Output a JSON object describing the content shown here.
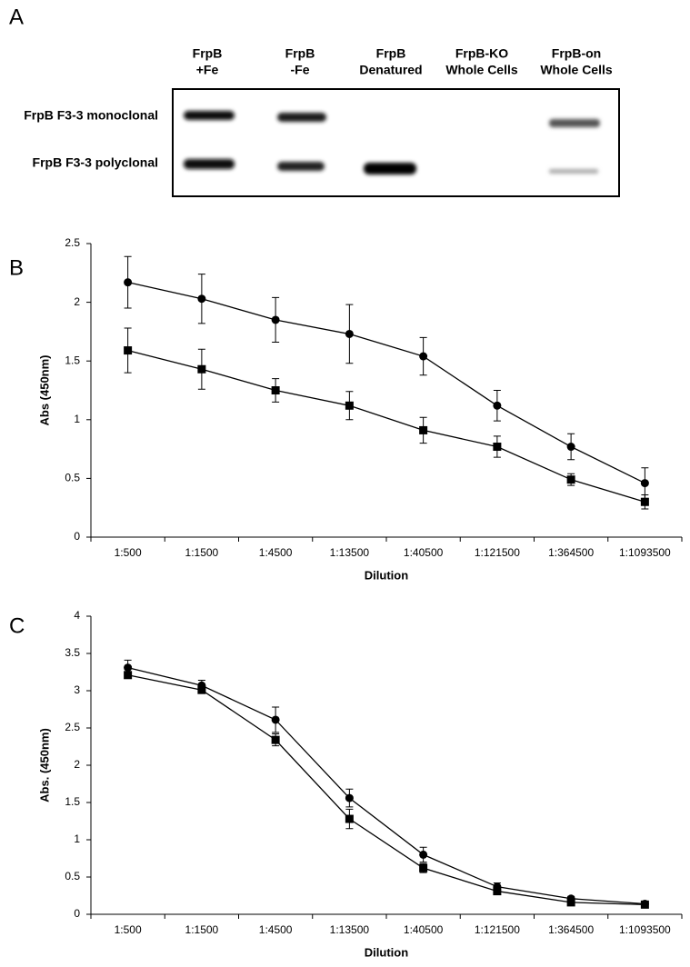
{
  "blot": {
    "panel_label": "A",
    "columns": [
      [
        "FrpB",
        "+Fe"
      ],
      [
        "FrpB",
        "-Fe"
      ],
      [
        "FrpB",
        "Denatured"
      ],
      [
        "FrpB-KO",
        "Whole Cells"
      ],
      [
        "FrpB-on",
        "Whole Cells"
      ]
    ],
    "rows": [
      "FrpB F3-3 monoclonal",
      "FrpB F3-3 polyclonal"
    ]
  },
  "chart_data": [
    {
      "type": "line",
      "panel_label": "B",
      "x_label": "Dilution",
      "y_label": "Abs (450nm)",
      "categories": [
        "1:500",
        "1:1500",
        "1:4500",
        "1:13500",
        "1:40500",
        "1:121500",
        "1:364500",
        "1:1093500"
      ],
      "ylim": [
        0,
        2.5
      ],
      "yticks": [
        0,
        0.5,
        1,
        1.5,
        2,
        2.5
      ],
      "series": [
        {
          "color": "#000000",
          "marker": "circle",
          "values": [
            2.17,
            2.03,
            1.85,
            1.73,
            1.54,
            1.12,
            0.77,
            0.46
          ],
          "errors": [
            0.22,
            0.21,
            0.19,
            0.25,
            0.16,
            0.13,
            0.11,
            0.13
          ]
        },
        {
          "color": "#000000",
          "marker": "square",
          "values": [
            1.59,
            1.43,
            1.25,
            1.12,
            0.91,
            0.77,
            0.49,
            0.3
          ],
          "errors": [
            0.19,
            0.17,
            0.1,
            0.12,
            0.11,
            0.09,
            0.05,
            0.06
          ]
        }
      ]
    },
    {
      "type": "line",
      "panel_label": "C",
      "x_label": "Dilution",
      "y_label": "Abs. (450nm)",
      "categories": [
        "1:500",
        "1:1500",
        "1:4500",
        "1:13500",
        "1:40500",
        "1:121500",
        "1:364500",
        "1:1093500"
      ],
      "ylim": [
        0,
        4
      ],
      "yticks": [
        0,
        0.5,
        1,
        1.5,
        2,
        2.5,
        3,
        3.5,
        4
      ],
      "series": [
        {
          "color": "#000000",
          "marker": "circle",
          "values": [
            3.31,
            3.07,
            2.61,
            1.56,
            0.8,
            0.37,
            0.21,
            0.14
          ],
          "errors": [
            0.1,
            0.07,
            0.17,
            0.12,
            0.1,
            0.05,
            0.03,
            0.02
          ]
        },
        {
          "color": "#000000",
          "marker": "square",
          "values": [
            3.21,
            3.01,
            2.34,
            1.28,
            0.62,
            0.31,
            0.16,
            0.13
          ],
          "errors": [
            0.04,
            0.04,
            0.08,
            0.13,
            0.06,
            0.04,
            0.02,
            0.02
          ]
        }
      ]
    }
  ]
}
